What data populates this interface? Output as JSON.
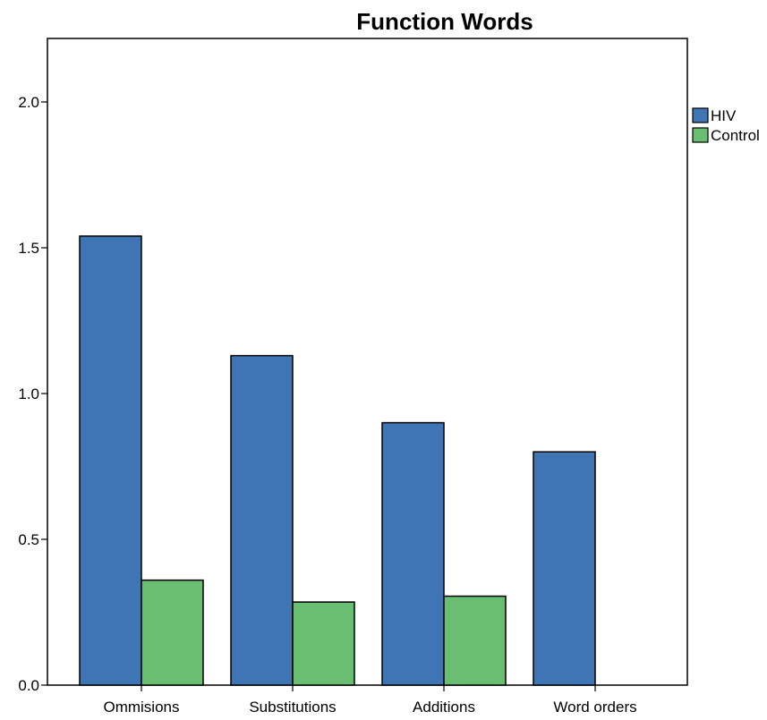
{
  "chart_data": {
    "type": "bar",
    "title": "Function Words",
    "categories": [
      "Ommisions",
      "Substitutions",
      "Additions",
      "Word orders"
    ],
    "series": [
      {
        "name": "HIV",
        "color": "#3f74b5",
        "values": [
          1.54,
          1.13,
          0.9,
          0.8
        ]
      },
      {
        "name": "Control",
        "color": "#6abe72",
        "values": [
          0.36,
          0.285,
          0.305,
          0
        ]
      }
    ],
    "yticks": [
      "0.0",
      "0.5",
      "1.0",
      "1.5",
      "2.0"
    ],
    "ylim": [
      0,
      2.23
    ],
    "xlabel": "",
    "ylabel": "",
    "legend_position": "right-top",
    "grid": false
  }
}
